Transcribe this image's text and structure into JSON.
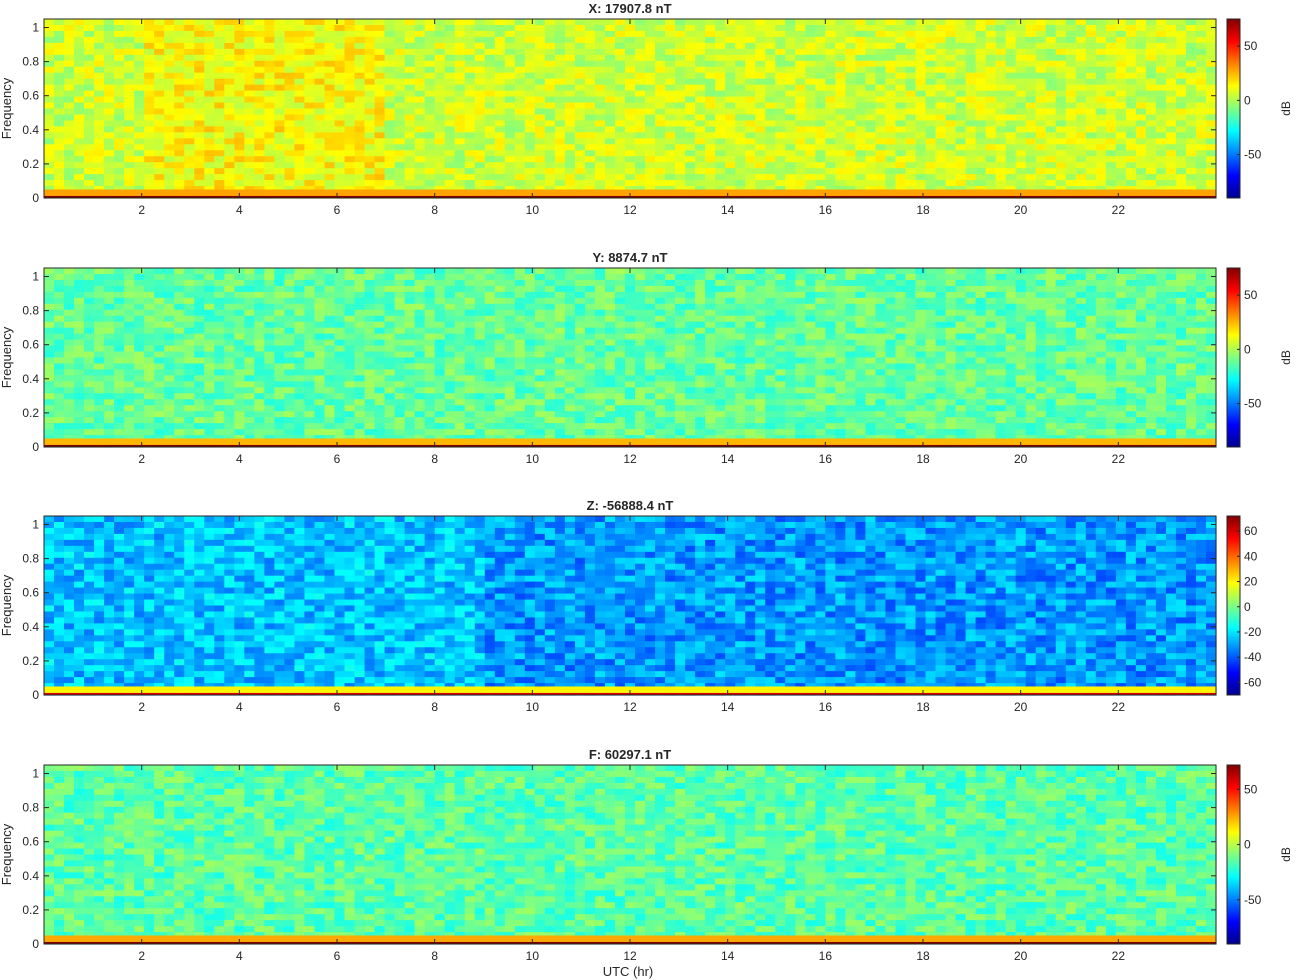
{
  "figure": {
    "xlabel": "UTC (hr)",
    "colormap": "jet",
    "colormap_stops": [
      "#00008f",
      "#0000ff",
      "#0080ff",
      "#00ffff",
      "#80ff80",
      "#ffff00",
      "#ff8000",
      "#ff0000",
      "#800000"
    ]
  },
  "chart_data": [
    {
      "type": "heatmap",
      "title": "X: 17907.8 nT",
      "xlabel": "",
      "ylabel": "Frequency",
      "colorbar_label": "dB",
      "x_ticks": [
        2,
        4,
        6,
        8,
        10,
        12,
        14,
        16,
        18,
        20,
        22
      ],
      "xlim": [
        0,
        24
      ],
      "y_ticks": [
        0,
        0.2,
        0.4,
        0.6,
        0.8,
        1
      ],
      "ylim": [
        0,
        1.05
      ],
      "clim": [
        -90,
        75
      ],
      "colorbar_ticks": [
        50,
        0,
        -50
      ],
      "background_level_db": 5,
      "dc_band_level_db": 75,
      "low_freq_level_db": 28
    },
    {
      "type": "heatmap",
      "title": "Y: 8874.7 nT",
      "xlabel": "",
      "ylabel": "Frequency",
      "colorbar_label": "dB",
      "x_ticks": [
        2,
        4,
        6,
        8,
        10,
        12,
        14,
        16,
        18,
        20,
        22
      ],
      "xlim": [
        0,
        24
      ],
      "y_ticks": [
        0,
        0.2,
        0.4,
        0.6,
        0.8,
        1
      ],
      "ylim": [
        0,
        1.05
      ],
      "clim": [
        -90,
        75
      ],
      "colorbar_ticks": [
        50,
        0,
        -50
      ],
      "background_level_db": -12,
      "dc_band_level_db": 75,
      "low_freq_level_db": 25
    },
    {
      "type": "heatmap",
      "title": "Z: -56888.4 nT",
      "xlabel": "",
      "ylabel": "Frequency",
      "colorbar_label": "",
      "x_ticks": [
        2,
        4,
        6,
        8,
        10,
        12,
        14,
        16,
        18,
        20,
        22
      ],
      "xlim": [
        0,
        24
      ],
      "y_ticks": [
        0,
        0.2,
        0.4,
        0.6,
        0.8,
        1
      ],
      "ylim": [
        0,
        1.05
      ],
      "clim": [
        -70,
        72
      ],
      "colorbar_ticks": [
        60,
        40,
        20,
        0,
        -20,
        -40,
        -60
      ],
      "background_level_db": -25,
      "dc_band_level_db": 60,
      "low_freq_level_db": 20
    },
    {
      "type": "heatmap",
      "title": "F: 60297.1 nT",
      "xlabel": "UTC (hr)",
      "ylabel": "Frequency",
      "colorbar_label": "dB",
      "x_ticks": [
        2,
        4,
        6,
        8,
        10,
        12,
        14,
        16,
        18,
        20,
        22
      ],
      "xlim": [
        0,
        24
      ],
      "y_ticks": [
        0,
        0.2,
        0.4,
        0.6,
        0.8,
        1
      ],
      "ylim": [
        0,
        1.05
      ],
      "clim": [
        -90,
        72
      ],
      "colorbar_ticks": [
        50,
        0,
        -50
      ],
      "background_level_db": -15,
      "dc_band_level_db": 72,
      "low_freq_level_db": 25
    }
  ]
}
